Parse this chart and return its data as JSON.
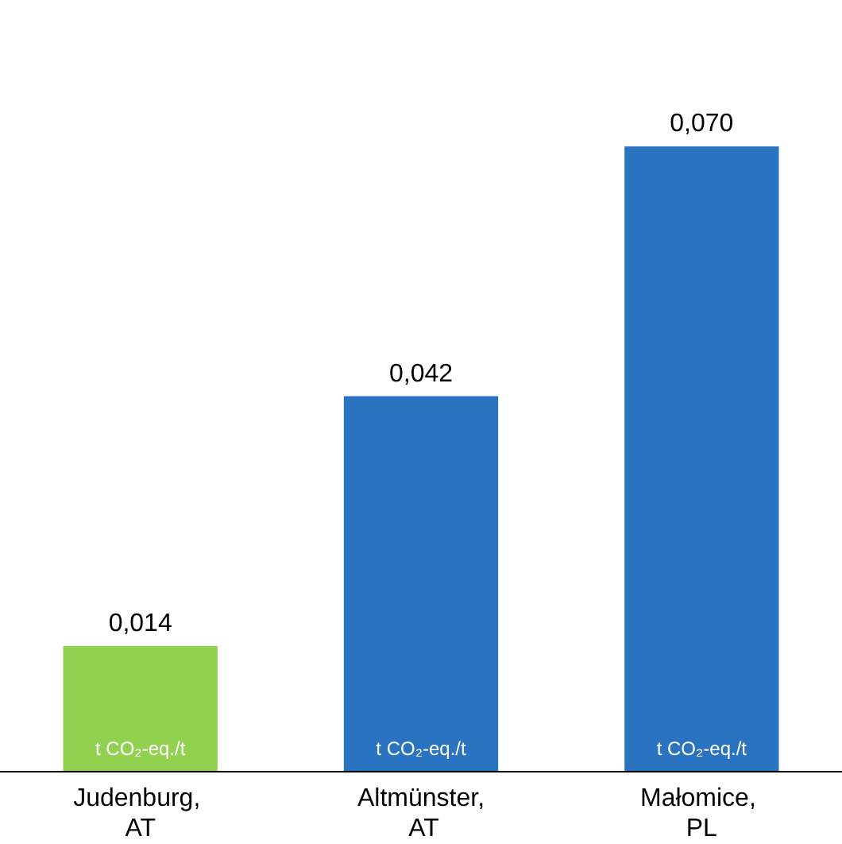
{
  "chart_data": {
    "type": "bar",
    "categories": [
      "Judenburg, AT",
      "Altmünster, AT",
      "Małomice, PL"
    ],
    "values": [
      0.014,
      0.042,
      0.07
    ],
    "colors": [
      "#92d050",
      "#2a73c0",
      "#2a73c0"
    ],
    "value_labels": [
      "0,014",
      "0,042",
      "0,070"
    ],
    "annotations": [
      "t CO₂-eq./t",
      "t CO₂-eq./t",
      "t CO₂-eq./t"
    ]
  }
}
